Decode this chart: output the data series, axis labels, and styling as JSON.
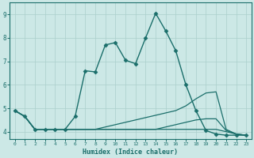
{
  "xlabel": "Humidex (Indice chaleur)",
  "xlim": [
    -0.5,
    23.5
  ],
  "ylim": [
    3.7,
    9.5
  ],
  "xticks": [
    0,
    1,
    2,
    3,
    4,
    5,
    6,
    7,
    8,
    9,
    10,
    11,
    12,
    13,
    14,
    15,
    16,
    17,
    18,
    19,
    20,
    21,
    22,
    23
  ],
  "yticks": [
    4,
    5,
    6,
    7,
    8,
    9
  ],
  "bg_color": "#cce8e6",
  "line_color": "#1a6e6a",
  "grid_color": "#aacfcc",
  "series": [
    {
      "x": [
        0,
        1,
        2,
        3,
        4,
        5,
        6,
        7,
        8,
        9,
        10,
        11,
        12,
        13,
        14,
        15,
        16,
        17,
        18,
        19,
        20,
        21,
        22,
        23
      ],
      "y": [
        4.9,
        4.65,
        4.1,
        4.1,
        4.1,
        4.1,
        4.65,
        6.6,
        6.55,
        7.7,
        7.8,
        7.05,
        6.9,
        8.0,
        9.05,
        8.3,
        7.45,
        6.0,
        4.9,
        4.05,
        3.9,
        3.85,
        3.85,
        3.85
      ],
      "marker": "D",
      "markersize": 2.5,
      "lw": 1.0
    },
    {
      "x": [
        0,
        1,
        2,
        3,
        4,
        5,
        6,
        7,
        8,
        9,
        10,
        11,
        12,
        13,
        14,
        15,
        16,
        17,
        18,
        19,
        20,
        21,
        22,
        23
      ],
      "y": [
        4.9,
        4.65,
        4.1,
        4.1,
        4.1,
        4.1,
        4.1,
        4.1,
        4.1,
        4.2,
        4.3,
        4.4,
        4.5,
        4.6,
        4.7,
        4.8,
        4.9,
        5.1,
        5.4,
        5.65,
        5.7,
        4.1,
        3.9,
        3.85
      ],
      "marker": null,
      "markersize": 0,
      "lw": 0.9
    },
    {
      "x": [
        0,
        1,
        2,
        3,
        4,
        5,
        6,
        7,
        8,
        9,
        10,
        11,
        12,
        13,
        14,
        15,
        16,
        17,
        18,
        19,
        20,
        21,
        22,
        23
      ],
      "y": [
        4.9,
        4.65,
        4.1,
        4.1,
        4.1,
        4.1,
        4.1,
        4.1,
        4.1,
        4.1,
        4.1,
        4.1,
        4.1,
        4.1,
        4.1,
        4.2,
        4.3,
        4.4,
        4.5,
        4.55,
        4.55,
        4.05,
        3.9,
        3.85
      ],
      "marker": null,
      "markersize": 0,
      "lw": 0.9
    },
    {
      "x": [
        0,
        1,
        2,
        3,
        4,
        5,
        6,
        7,
        8,
        9,
        10,
        11,
        12,
        13,
        14,
        15,
        16,
        17,
        18,
        19,
        20,
        21,
        22,
        23
      ],
      "y": [
        4.9,
        4.65,
        4.1,
        4.1,
        4.1,
        4.1,
        4.1,
        4.1,
        4.1,
        4.1,
        4.1,
        4.1,
        4.1,
        4.1,
        4.1,
        4.1,
        4.1,
        4.1,
        4.1,
        4.1,
        4.1,
        4.0,
        3.9,
        3.85
      ],
      "marker": null,
      "markersize": 0,
      "lw": 0.9
    }
  ]
}
